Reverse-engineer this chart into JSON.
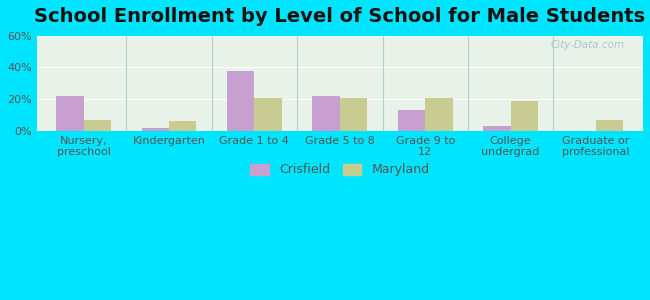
{
  "title": "School Enrollment by Level of School for Male Students",
  "categories": [
    "Nursery,\npreschool",
    "Kindergarten",
    "Grade 1 to 4",
    "Grade 5 to 8",
    "Grade 9 to\n12",
    "College\nundergrad",
    "Graduate or\nprofessional"
  ],
  "crisfield": [
    22,
    2,
    38,
    22,
    13,
    3,
    0
  ],
  "maryland": [
    7,
    6,
    21,
    21,
    21,
    19,
    7
  ],
  "crisfield_color": "#c8a0d0",
  "maryland_color": "#c8cc90",
  "background_plot_top": "#e8f0e8",
  "background_plot_bottom": "#d0ead8",
  "background_fig": "#00e5ff",
  "ylim": [
    0,
    60
  ],
  "yticks": [
    0,
    20,
    40,
    60
  ],
  "ytick_labels": [
    "0%",
    "20%",
    "40%",
    "60%"
  ],
  "title_fontsize": 14,
  "legend_fontsize": 9,
  "tick_fontsize": 8,
  "bar_width": 0.32
}
